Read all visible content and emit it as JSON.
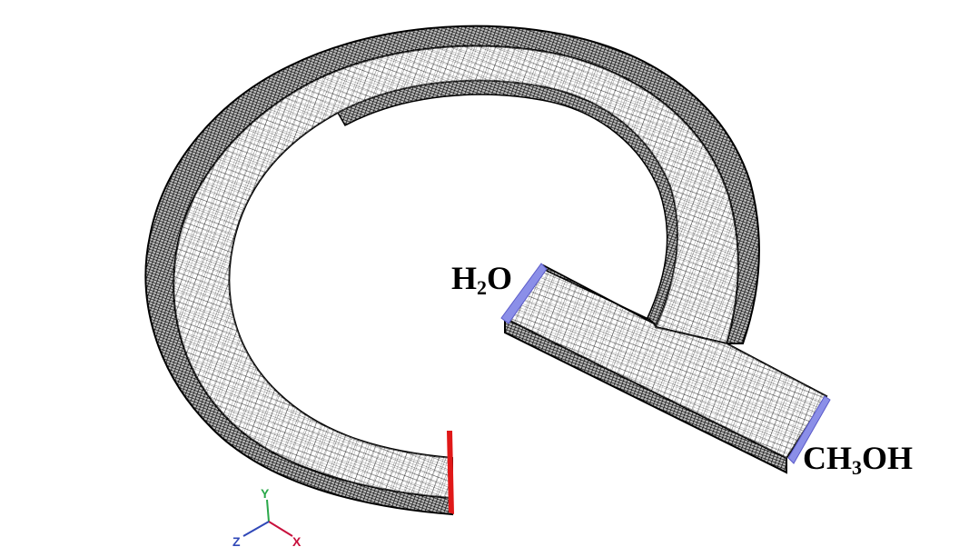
{
  "labels": {
    "water": {
      "prefix": "H",
      "sub": "2",
      "suffix": "O"
    },
    "methanol": {
      "prefix": "CH",
      "sub": "3",
      "suffix": "OH"
    }
  },
  "axes": {
    "y": "Y",
    "x": "X",
    "z": "Z"
  },
  "colors": {
    "mesh": "#000000",
    "outlet": "#e01818",
    "inlet": "#8b8fe8",
    "axis_y": "#2aa84a",
    "axis_x": "#c8103c",
    "axis_z": "#3048b8"
  }
}
